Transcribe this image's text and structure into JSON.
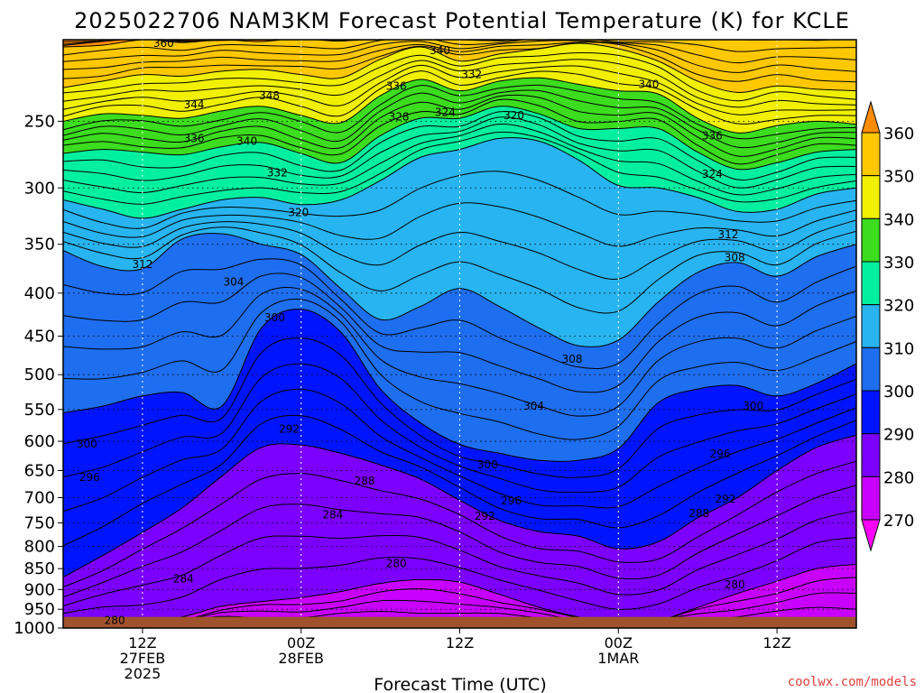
{
  "title": "2025022706 NAM3KM Forecast Potential Temperature (K) for KCLE",
  "xlabel": "Forecast Time (UTC)",
  "credit": "coolwx.com/models",
  "chart_data": {
    "type": "heatmap",
    "title": "2025022706 NAM3KM Forecast Potential Temperature (K) for KCLE",
    "xlabel": "Forecast Time (UTC)",
    "ylabel": "",
    "y_scale": "log",
    "y_inverted": true,
    "ylim": [
      1000,
      200
    ],
    "y_ticks": [
      250,
      300,
      350,
      400,
      450,
      500,
      550,
      600,
      650,
      700,
      750,
      800,
      850,
      900,
      950,
      1000
    ],
    "xlim_hours": [
      0,
      60
    ],
    "x_ticks": [
      {
        "hour": 6,
        "lines": [
          "12Z",
          "27FEB",
          "2025"
        ]
      },
      {
        "hour": 18,
        "lines": [
          "00Z",
          "28FEB"
        ]
      },
      {
        "hour": 30,
        "lines": [
          "12Z"
        ]
      },
      {
        "hour": 42,
        "lines": [
          "00Z",
          "1MAR"
        ]
      },
      {
        "hour": 54,
        "lines": [
          "12Z"
        ]
      }
    ],
    "contour_interval_K": 2,
    "grid": true,
    "colorbar": {
      "levels": [
        270,
        280,
        290,
        300,
        310,
        320,
        330,
        340,
        350,
        360
      ],
      "labels": [
        "270",
        "280",
        "290",
        "300",
        "310",
        "320",
        "330",
        "340",
        "350",
        "360"
      ],
      "colors": [
        "#ff00ff",
        "#c800ff",
        "#7b00ff",
        "#0014ff",
        "#1e6ef0",
        "#28b4f0",
        "#00f0a0",
        "#3cdc1e",
        "#f0f000",
        "#ffc800",
        "#ff8c00"
      ]
    },
    "contour_labels": [
      {
        "text": "360",
        "hour": 7.6,
        "p": 202
      },
      {
        "text": "344",
        "hour": 9.9,
        "p": 239
      },
      {
        "text": "348",
        "hour": 15.6,
        "p": 233
      },
      {
        "text": "336",
        "hour": 9.9,
        "p": 262
      },
      {
        "text": "340",
        "hour": 13.9,
        "p": 264
      },
      {
        "text": "332",
        "hour": 16.2,
        "p": 288
      },
      {
        "text": "320",
        "hour": 17.8,
        "p": 321
      },
      {
        "text": "312",
        "hour": 6.0,
        "p": 370
      },
      {
        "text": "304",
        "hour": 12.9,
        "p": 388
      },
      {
        "text": "300",
        "hour": 16.0,
        "p": 428
      },
      {
        "text": "292",
        "hour": 17.1,
        "p": 580
      },
      {
        "text": "300",
        "hour": 1.8,
        "p": 604
      },
      {
        "text": "296",
        "hour": 2.0,
        "p": 662
      },
      {
        "text": "288",
        "hour": 22.8,
        "p": 669
      },
      {
        "text": "284",
        "hour": 20.4,
        "p": 734
      },
      {
        "text": "284",
        "hour": 9.1,
        "p": 874
      },
      {
        "text": "280",
        "hour": 25.2,
        "p": 838
      },
      {
        "text": "280",
        "hour": 3.9,
        "p": 979
      },
      {
        "text": "340",
        "hour": 28.5,
        "p": 206
      },
      {
        "text": "336",
        "hour": 25.2,
        "p": 227
      },
      {
        "text": "332",
        "hour": 30.9,
        "p": 220
      },
      {
        "text": "328",
        "hour": 25.4,
        "p": 247
      },
      {
        "text": "324",
        "hour": 28.9,
        "p": 244
      },
      {
        "text": "320",
        "hour": 34.1,
        "p": 246
      },
      {
        "text": "340",
        "hour": 44.3,
        "p": 226
      },
      {
        "text": "336",
        "hour": 49.1,
        "p": 260
      },
      {
        "text": "324",
        "hour": 49.1,
        "p": 289
      },
      {
        "text": "312",
        "hour": 50.3,
        "p": 341
      },
      {
        "text": "308",
        "hour": 50.8,
        "p": 363
      },
      {
        "text": "308",
        "hour": 38.5,
        "p": 479
      },
      {
        "text": "304",
        "hour": 35.6,
        "p": 545
      },
      {
        "text": "300",
        "hour": 32.1,
        "p": 640
      },
      {
        "text": "296",
        "hour": 33.9,
        "p": 706
      },
      {
        "text": "292",
        "hour": 31.9,
        "p": 736
      },
      {
        "text": "300",
        "hour": 52.2,
        "p": 545
      },
      {
        "text": "296",
        "hour": 49.7,
        "p": 621
      },
      {
        "text": "292",
        "hour": 50.1,
        "p": 703
      },
      {
        "text": "288",
        "hour": 48.1,
        "p": 731
      },
      {
        "text": "280",
        "hour": 50.8,
        "p": 888
      }
    ],
    "surface_pressure_hPa": 970,
    "boundaries": {
      "top": [
        [
          [
            0,
            204
          ],
          [
            3,
            203
          ],
          [
            6,
            200
          ],
          [
            9,
            201
          ],
          [
            12,
            200
          ],
          [
            15,
            201
          ],
          [
            18,
            199
          ],
          [
            21,
            200
          ],
          [
            24,
            199
          ],
          [
            27,
            198
          ],
          [
            30,
            199
          ],
          [
            33,
            200
          ],
          [
            36,
            199
          ],
          [
            39,
            198
          ],
          [
            42,
            199
          ],
          [
            45,
            199
          ],
          [
            48,
            199
          ],
          [
            51,
            200
          ],
          [
            54,
            199
          ],
          [
            57,
            200
          ],
          [
            60,
            199
          ]
        ],
        [
          [
            0,
            228
          ],
          [
            3,
            224
          ],
          [
            6,
            220
          ],
          [
            9,
            221
          ],
          [
            12,
            218
          ],
          [
            15,
            217
          ],
          [
            18,
            220
          ],
          [
            21,
            222
          ],
          [
            24,
            211
          ],
          [
            27,
            204
          ],
          [
            30,
            212
          ],
          [
            33,
            208
          ],
          [
            36,
            205
          ],
          [
            39,
            202
          ],
          [
            42,
            205
          ],
          [
            45,
            212
          ],
          [
            48,
            224
          ],
          [
            51,
            231
          ],
          [
            54,
            227
          ],
          [
            57,
            229
          ],
          [
            60,
            230
          ]
        ],
        [
          [
            0,
            250
          ],
          [
            3,
            245
          ],
          [
            6,
            246
          ],
          [
            9,
            248
          ],
          [
            12,
            243
          ],
          [
            15,
            240
          ],
          [
            18,
            246
          ],
          [
            21,
            251
          ],
          [
            24,
            233
          ],
          [
            27,
            223
          ],
          [
            30,
            230
          ],
          [
            33,
            224
          ],
          [
            36,
            222
          ],
          [
            39,
            226
          ],
          [
            42,
            230
          ],
          [
            45,
            232
          ],
          [
            48,
            248
          ],
          [
            51,
            258
          ],
          [
            54,
            253
          ],
          [
            57,
            250
          ],
          [
            60,
            252
          ]
        ],
        [
          [
            0,
            273
          ],
          [
            3,
            270
          ],
          [
            6,
            272
          ],
          [
            9,
            274
          ],
          [
            12,
            268
          ],
          [
            15,
            265
          ],
          [
            18,
            273
          ],
          [
            21,
            280
          ],
          [
            24,
            260
          ],
          [
            27,
            248
          ],
          [
            30,
            248
          ],
          [
            33,
            240
          ],
          [
            36,
            245
          ],
          [
            39,
            255
          ],
          [
            42,
            255
          ],
          [
            45,
            255
          ],
          [
            48,
            272
          ],
          [
            51,
            285
          ],
          [
            54,
            280
          ],
          [
            57,
            272
          ],
          [
            60,
            270
          ]
        ],
        [
          [
            0,
            310
          ],
          [
            3,
            318
          ],
          [
            6,
            326
          ],
          [
            9,
            318
          ],
          [
            12,
            310
          ],
          [
            15,
            308
          ],
          [
            18,
            314
          ],
          [
            21,
            310
          ],
          [
            24,
            294
          ],
          [
            27,
            276
          ],
          [
            30,
            270
          ],
          [
            33,
            262
          ],
          [
            36,
            264
          ],
          [
            39,
            278
          ],
          [
            42,
            298
          ],
          [
            45,
            300
          ],
          [
            48,
            308
          ],
          [
            51,
            320
          ],
          [
            54,
            318
          ],
          [
            57,
            305
          ],
          [
            60,
            300
          ]
        ],
        [
          [
            0,
            356
          ],
          [
            3,
            372
          ],
          [
            6,
            374
          ],
          [
            9,
            345
          ],
          [
            12,
            340
          ],
          [
            15,
            350
          ],
          [
            18,
            360
          ],
          [
            21,
            395
          ],
          [
            24,
            430
          ],
          [
            27,
            415
          ],
          [
            30,
            395
          ],
          [
            33,
            415
          ],
          [
            36,
            440
          ],
          [
            39,
            462
          ],
          [
            42,
            455
          ],
          [
            45,
            410
          ],
          [
            48,
            378
          ],
          [
            51,
            368
          ],
          [
            54,
            382
          ],
          [
            57,
            362
          ],
          [
            60,
            350
          ]
        ],
        [
          [
            0,
            555
          ],
          [
            3,
            545
          ],
          [
            6,
            530
          ],
          [
            9,
            525
          ],
          [
            12,
            545
          ],
          [
            15,
            440
          ],
          [
            18,
            418
          ],
          [
            21,
            445
          ],
          [
            24,
            520
          ],
          [
            27,
            570
          ],
          [
            30,
            605
          ],
          [
            33,
            620
          ],
          [
            36,
            632
          ],
          [
            39,
            632
          ],
          [
            42,
            612
          ],
          [
            45,
            540
          ],
          [
            48,
            520
          ],
          [
            51,
            515
          ],
          [
            54,
            530
          ],
          [
            57,
            512
          ],
          [
            60,
            485
          ]
        ],
        [
          [
            0,
            870
          ],
          [
            3,
            820
          ],
          [
            6,
            770
          ],
          [
            9,
            720
          ],
          [
            12,
            660
          ],
          [
            15,
            610
          ],
          [
            18,
            606
          ],
          [
            21,
            620
          ],
          [
            24,
            640
          ],
          [
            27,
            665
          ],
          [
            30,
            705
          ],
          [
            33,
            745
          ],
          [
            36,
            768
          ],
          [
            39,
            778
          ],
          [
            42,
            805
          ],
          [
            45,
            790
          ],
          [
            48,
            740
          ],
          [
            51,
            700
          ],
          [
            54,
            650
          ],
          [
            57,
            610
          ],
          [
            60,
            590
          ]
        ],
        [
          [
            0,
            985
          ],
          [
            3,
            985
          ],
          [
            6,
            984
          ],
          [
            9,
            970
          ],
          [
            12,
            942
          ],
          [
            15,
            930
          ],
          [
            18,
            920
          ],
          [
            21,
            905
          ],
          [
            24,
            885
          ],
          [
            27,
            876
          ],
          [
            30,
            882
          ],
          [
            33,
            912
          ],
          [
            36,
            945
          ],
          [
            39,
            970
          ],
          [
            42,
            984
          ],
          [
            45,
            980
          ],
          [
            48,
            945
          ],
          [
            51,
            910
          ],
          [
            54,
            880
          ],
          [
            57,
            850
          ],
          [
            60,
            840
          ]
        ]
      ]
    }
  }
}
